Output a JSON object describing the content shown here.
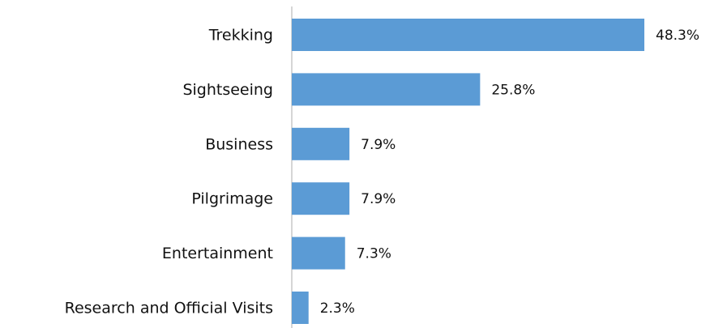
{
  "chart_data": {
    "type": "bar",
    "orientation": "horizontal",
    "categories": [
      "Trekking",
      "Sightseeing",
      "Business",
      "Pilgrimage",
      "Entertainment",
      "Research and Official Visits"
    ],
    "values": [
      48.3,
      25.8,
      7.9,
      7.9,
      7.3,
      2.3
    ],
    "value_labels": [
      "48.3%",
      "25.8%",
      "7.9%",
      "7.9%",
      "7.3%",
      "2.3%"
    ],
    "color": "#5b9bd5"
  }
}
